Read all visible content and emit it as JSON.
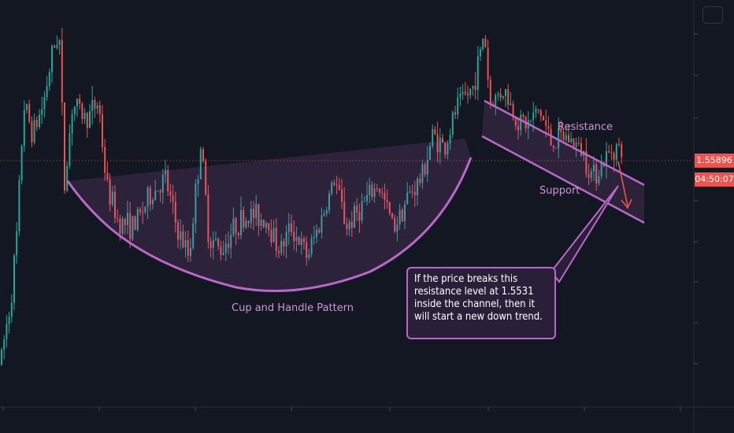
{
  "chart_data": {
    "type": "candlestick",
    "price_label": "1.55896",
    "countdown_label": "04:50:07",
    "annotations": {
      "resistance": "Resistance",
      "support": "Support",
      "pattern": "Cup and Handle Pattern",
      "callout": "If the price breaks this resistance level at 1.5531 inside the channel, then it will start a new down trend."
    },
    "grid": false,
    "colors": {
      "background": "#131722",
      "up": "#26a69a",
      "down": "#ef5350",
      "annotation": "#ba68c8",
      "annotation_text": "#ce93d8"
    },
    "price_path": [
      [
        0,
        1.486
      ],
      [
        14,
        1.508
      ],
      [
        22,
        1.531
      ],
      [
        30,
        1.573
      ],
      [
        42,
        1.563
      ],
      [
        55,
        1.573
      ],
      [
        65,
        1.588
      ],
      [
        75,
        1.598
      ],
      [
        82,
        1.546
      ],
      [
        92,
        1.573
      ],
      [
        110,
        1.568
      ],
      [
        125,
        1.574
      ],
      [
        135,
        1.546
      ],
      [
        150,
        1.534
      ],
      [
        170,
        1.532
      ],
      [
        190,
        1.542
      ],
      [
        210,
        1.548
      ],
      [
        225,
        1.531
      ],
      [
        240,
        1.522
      ],
      [
        255,
        1.56
      ],
      [
        265,
        1.529
      ],
      [
        280,
        1.524
      ],
      [
        300,
        1.533
      ],
      [
        320,
        1.536
      ],
      [
        340,
        1.534
      ],
      [
        355,
        1.524
      ],
      [
        370,
        1.532
      ],
      [
        390,
        1.522
      ],
      [
        410,
        1.536
      ],
      [
        425,
        1.548
      ],
      [
        440,
        1.532
      ],
      [
        460,
        1.539
      ],
      [
        480,
        1.546
      ],
      [
        500,
        1.532
      ],
      [
        520,
        1.543
      ],
      [
        535,
        1.548
      ],
      [
        550,
        1.563
      ],
      [
        565,
        1.558
      ],
      [
        580,
        1.572
      ],
      [
        600,
        1.578
      ],
      [
        610,
        1.59
      ],
      [
        615,
        1.598
      ],
      [
        622,
        1.573
      ],
      [
        640,
        1.578
      ],
      [
        655,
        1.568
      ],
      [
        670,
        1.566
      ],
      [
        685,
        1.571
      ],
      [
        700,
        1.56
      ],
      [
        720,
        1.562
      ],
      [
        740,
        1.557
      ],
      [
        752,
        1.549
      ],
      [
        765,
        1.553
      ],
      [
        780,
        1.559
      ],
      [
        790,
        1.557
      ]
    ]
  }
}
